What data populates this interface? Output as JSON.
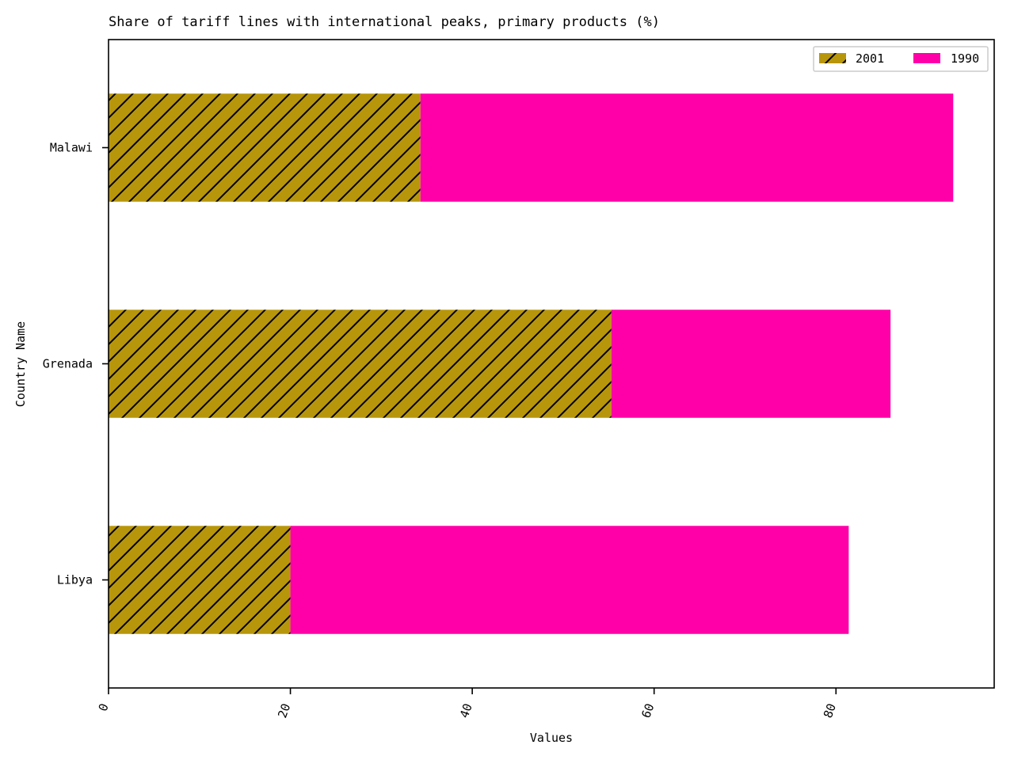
{
  "chart_data": {
    "type": "bar",
    "orientation": "horizontal",
    "stacked": true,
    "title": "Share of tariff lines with international peaks, primary products (%)",
    "xlabel": "Values",
    "ylabel": "Country Name",
    "categories": [
      "Libya",
      "Grenada",
      "Malawi"
    ],
    "series": [
      {
        "name": "2001",
        "values": [
          20.0,
          55.3,
          34.3
        ],
        "color": "#b8960b",
        "hatch": "diagonal"
      },
      {
        "name": "1990",
        "values": [
          61.4,
          30.7,
          58.6
        ],
        "color": "#ff00a8",
        "hatch": "none"
      }
    ],
    "xlim": [
      0,
      97.4
    ],
    "xticks": [
      "0",
      "20",
      "40",
      "60",
      "80"
    ],
    "xtick_values": [
      0,
      20,
      40,
      60,
      80
    ],
    "grid": false,
    "legend_placement": "top-right"
  }
}
